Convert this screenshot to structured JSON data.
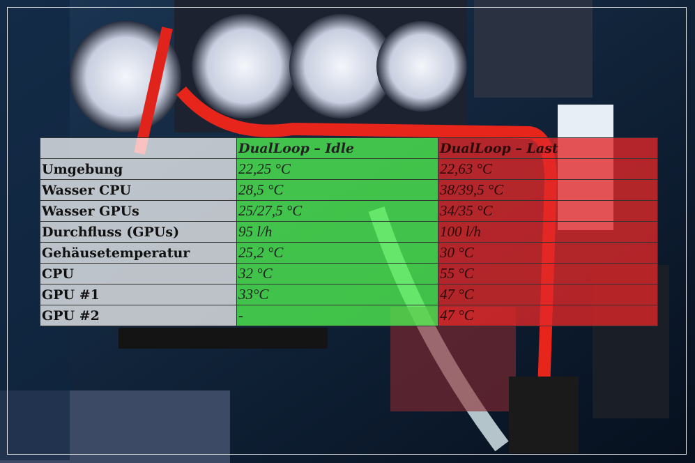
{
  "table": {
    "header": [
      "DualLoop – Idle",
      "DualLoop – Last"
    ],
    "rows": [
      [
        "Umgebung",
        "22,25 °C",
        "22,63 °C"
      ],
      [
        "Wasser CPU",
        "28,5 °C",
        "38/39,5 °C"
      ],
      [
        "Wasser GPUs",
        "25/27,5 °C",
        "34/35 °C"
      ],
      [
        "Durchfluss (GPUs)",
        "95 l/h",
        "100 l/h"
      ],
      [
        "Gehäusetemperatur",
        "25,2 °C",
        "30 °C"
      ],
      [
        "CPU",
        "32 °C",
        "55 °C"
      ],
      [
        "GPU #1",
        "33°C",
        "47 °C"
      ],
      [
        "GPU #2",
        "-",
        "47 °C"
      ]
    ]
  }
}
